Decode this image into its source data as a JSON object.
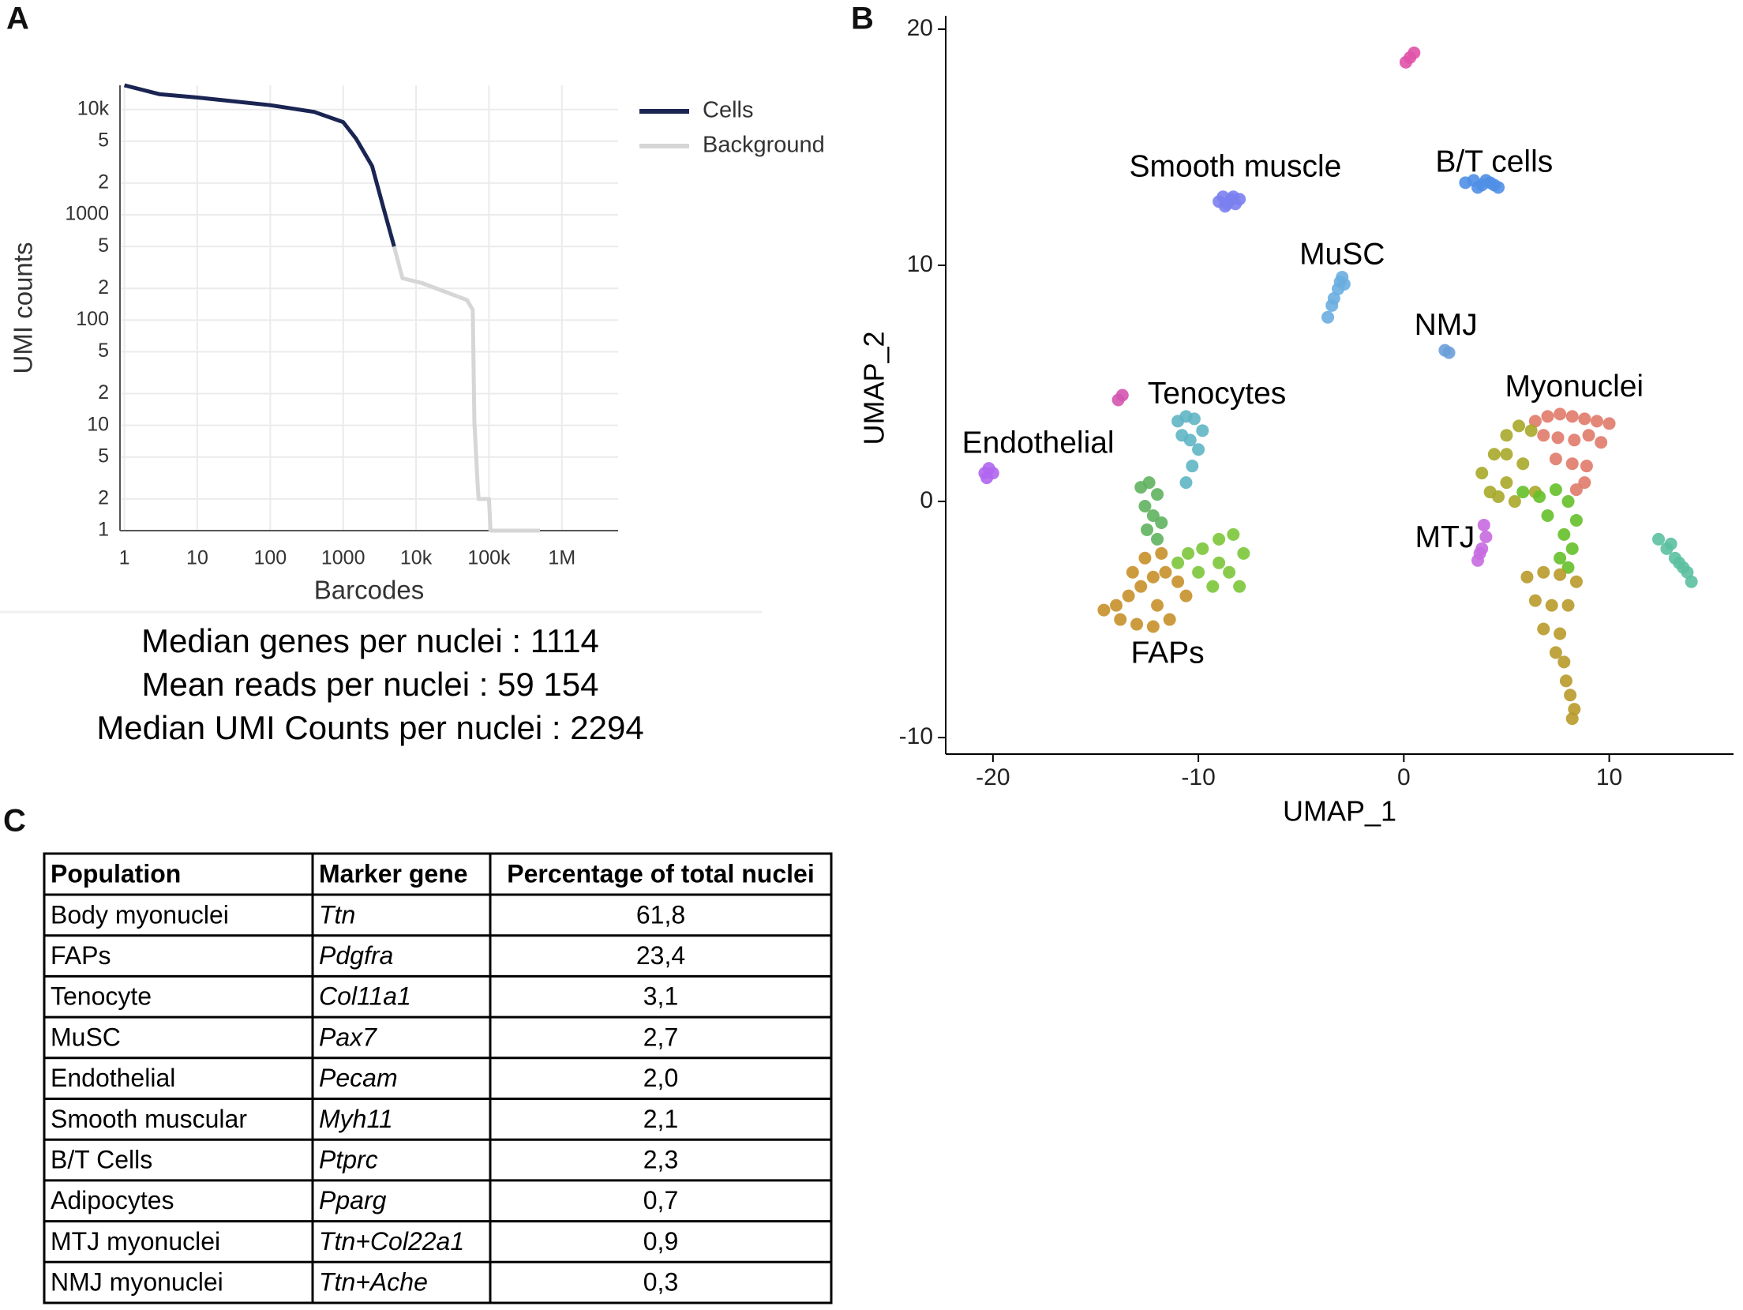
{
  "panel_labels": [
    "A",
    "B",
    "C"
  ],
  "chart_data": [
    {
      "type": "line",
      "x_label": "Barcodes",
      "y_label": "UMI counts",
      "xscale": "log",
      "yscale": "log",
      "xlim": [
        0.87,
        5900000
      ],
      "ylim": [
        1,
        17000
      ],
      "xticks": [
        1,
        10,
        100,
        1000,
        {
          "value": 10000,
          "label": "10k"
        },
        {
          "value": 100000,
          "label": "100k"
        },
        {
          "value": 1000000,
          "label": "1M"
        }
      ],
      "yticks": [
        {
          "value": 10000,
          "label": "10k"
        },
        {
          "value": 5000,
          "label": "5"
        },
        {
          "value": 2000,
          "label": "2"
        },
        1000,
        {
          "value": 500,
          "label": "5"
        },
        {
          "value": 200,
          "label": "2"
        },
        100,
        {
          "value": 50,
          "label": "5"
        },
        {
          "value": 20,
          "label": "2"
        },
        10,
        5,
        2,
        1
      ],
      "grid": true,
      "legend": "right",
      "series": [
        {
          "name": "Cells",
          "color": "#1b2553",
          "x": [
            1,
            3,
            10,
            100,
            400,
            1000,
            1500,
            2500,
            3500,
            5000
          ],
          "values": [
            17000,
            14000,
            13000,
            11000,
            9500,
            7600,
            5300,
            2900,
            1230,
            500
          ]
        },
        {
          "name": "Background",
          "color": "#d6d6d6",
          "x": [
            5000,
            6500,
            12000,
            50000,
            60000,
            63000,
            70000,
            72000,
            100000,
            105000,
            500000
          ],
          "values": [
            500,
            250,
            225,
            155,
            125,
            11,
            2.7,
            2,
            2,
            1,
            1
          ]
        }
      ]
    },
    {
      "type": "scatter",
      "x_label": "UMAP_1",
      "y_label": "UMAP_2",
      "xlim": [
        -22.3,
        16.05
      ],
      "ylim": [
        -10.7,
        20.3
      ],
      "xticks": [
        -20,
        -10,
        0,
        10
      ],
      "yticks": [
        -10,
        0,
        10,
        20
      ],
      "annotations": [
        {
          "text": "Smooth muscle",
          "x": -8.2,
          "y": 14.1
        },
        {
          "text": "B/T cells",
          "x": 4.4,
          "y": 14.3
        },
        {
          "text": "MuSC",
          "x": -3.0,
          "y": 10.4
        },
        {
          "text": "NMJ",
          "x": 2.05,
          "y": 7.4
        },
        {
          "text": "Tenocytes",
          "x": -9.1,
          "y": 4.5
        },
        {
          "text": "Myonuclei",
          "x": 8.3,
          "y": 4.8
        },
        {
          "text": "Endothelial",
          "x": -17.8,
          "y": 2.4
        },
        {
          "text": "MTJ",
          "x": 2.0,
          "y": -1.6
        },
        {
          "text": "FAPs",
          "x": -11.5,
          "y": -6.5
        }
      ],
      "series": [
        {
          "color": "#e052a8",
          "x": [
            0.1,
            0.3,
            0.5
          ],
          "values": [
            18.6,
            18.8,
            19.0
          ]
        },
        {
          "color": "#7b7ff0",
          "x": [
            -9.0,
            -8.8,
            -8.6,
            -8.4,
            -8.2,
            -8.0,
            -8.7,
            -8.3
          ],
          "values": [
            12.7,
            12.9,
            12.6,
            12.8,
            12.6,
            12.8,
            12.5,
            12.9
          ]
        },
        {
          "color": "#4f8fe6",
          "x": [
            3.0,
            3.4,
            3.8,
            4.2,
            4.6,
            3.6,
            4.0,
            4.4
          ],
          "values": [
            13.5,
            13.6,
            13.4,
            13.5,
            13.3,
            13.3,
            13.6,
            13.4
          ]
        },
        {
          "color": "#6aaee0",
          "x": [
            -3.7,
            -3.5,
            -3.4,
            -3.2,
            -3.1,
            -3.0,
            -2.9
          ],
          "values": [
            7.8,
            8.3,
            8.6,
            9.0,
            9.3,
            9.5,
            9.2
          ]
        },
        {
          "color": "#6a9fd8",
          "x": [
            2.0,
            2.2
          ],
          "values": [
            6.4,
            6.3
          ]
        },
        {
          "color": "#d455b0",
          "x": [
            -13.9,
            -13.7
          ],
          "values": [
            4.3,
            4.5
          ]
        },
        {
          "color": "#b066f0",
          "x": [
            -20.4,
            -20.2,
            -20.0,
            -20.3
          ],
          "values": [
            1.2,
            1.4,
            1.2,
            1.0
          ]
        },
        {
          "color": "#c86ae0",
          "x": [
            3.6,
            3.8,
            4.0,
            3.9,
            3.7
          ],
          "values": [
            -2.5,
            -2.0,
            -1.5,
            -1.0,
            -2.2
          ]
        },
        {
          "color": "#5fb5c4",
          "x": [
            -11.0,
            -10.6,
            -10.2,
            -9.8,
            -10.4,
            -10.0,
            -10.8,
            -10.3,
            -10.6
          ],
          "values": [
            3.4,
            3.6,
            3.5,
            3.0,
            2.6,
            2.2,
            2.8,
            1.5,
            0.8
          ]
        },
        {
          "color": "#5fb35f",
          "x": [
            -12.8,
            -12.4,
            -12.0,
            -12.6,
            -12.2,
            -11.8,
            -12.5,
            -12.0
          ],
          "values": [
            0.6,
            0.8,
            0.3,
            -0.2,
            -0.6,
            -0.9,
            -1.2,
            -1.6
          ]
        },
        {
          "color": "#7cc63a",
          "x": [
            -10.5,
            -9.8,
            -9.0,
            -8.3,
            -7.8,
            -8.5,
            -9.3,
            -10.0,
            -8.0,
            -9.0,
            -11.0
          ],
          "values": [
            -2.2,
            -2.0,
            -1.6,
            -1.4,
            -2.2,
            -3.0,
            -3.6,
            -3.0,
            -3.6,
            -2.6,
            -2.6
          ]
        },
        {
          "color": "#c8902a",
          "x": [
            -14.6,
            -14.0,
            -13.4,
            -12.8,
            -12.2,
            -11.6,
            -11.0,
            -10.6,
            -13.8,
            -13.0,
            -12.2,
            -11.4,
            -12.6,
            -11.8,
            -13.2,
            -12.0
          ],
          "values": [
            -4.6,
            -4.4,
            -4.0,
            -3.6,
            -3.2,
            -3.0,
            -3.4,
            -4.0,
            -5.0,
            -5.2,
            -5.3,
            -5.0,
            -2.4,
            -2.2,
            -3.0,
            -4.4
          ]
        },
        {
          "color": "#e07a6a",
          "x": [
            6.4,
            7.0,
            7.6,
            8.2,
            8.8,
            9.4,
            10.0,
            6.8,
            7.5,
            8.3,
            9.0,
            9.6,
            7.4,
            8.2,
            8.9,
            8.8,
            8.4
          ],
          "values": [
            3.4,
            3.6,
            3.7,
            3.6,
            3.5,
            3.4,
            3.3,
            2.8,
            2.7,
            2.6,
            2.8,
            2.5,
            1.8,
            1.6,
            1.5,
            0.8,
            0.5
          ]
        },
        {
          "color": "#a8a82a",
          "x": [
            3.8,
            4.4,
            5.0,
            5.6,
            6.2,
            4.2,
            5.0,
            5.8,
            4.6,
            5.4,
            6.4,
            5.0
          ],
          "values": [
            1.2,
            2.0,
            2.8,
            3.2,
            3.0,
            0.4,
            0.8,
            1.6,
            0.2,
            0.0,
            0.4,
            2.0
          ]
        },
        {
          "color": "#66c02a",
          "x": [
            5.8,
            6.6,
            7.4,
            8.0,
            8.4,
            7.0,
            7.8,
            8.2,
            7.6,
            8.0
          ],
          "values": [
            0.4,
            0.2,
            0.5,
            0.0,
            -0.8,
            -0.6,
            -1.4,
            -2.0,
            -2.4,
            -2.8
          ]
        },
        {
          "color": "#b89a2a",
          "x": [
            6.0,
            6.8,
            7.6,
            8.4,
            6.4,
            7.2,
            8.0,
            6.8,
            7.6,
            7.4,
            7.8,
            7.9,
            8.1,
            8.3,
            8.2
          ],
          "values": [
            -3.2,
            -3.0,
            -3.1,
            -3.4,
            -4.2,
            -4.4,
            -4.4,
            -5.4,
            -5.6,
            -6.4,
            -6.8,
            -7.6,
            -8.2,
            -8.8,
            -9.2
          ]
        },
        {
          "color": "#5cc0a0",
          "x": [
            12.4,
            12.8,
            13.2,
            13.6,
            14.0,
            13.0,
            13.4,
            13.8
          ],
          "values": [
            -1.6,
            -2.0,
            -2.4,
            -2.8,
            -3.4,
            -1.8,
            -2.6,
            -3.0
          ]
        }
      ]
    }
  ],
  "stats": [
    "Median genes per nuclei : 1114",
    "Mean reads per nuclei : 59 154",
    "Median UMI Counts per nuclei : 2294"
  ],
  "table": {
    "header": [
      "Population",
      "Marker gene",
      "Percentage of total nuclei"
    ],
    "rows": [
      [
        "Body myonuclei",
        "Ttn",
        "61,8"
      ],
      [
        "FAPs",
        "Pdgfra",
        "23,4"
      ],
      [
        "Tenocyte",
        "Col11a1",
        "3,1"
      ],
      [
        "MuSC",
        "Pax7",
        "2,7"
      ],
      [
        "Endothelial",
        "Pecam",
        "2,0"
      ],
      [
        "Smooth muscular",
        "Myh11",
        "2,1"
      ],
      [
        "B/T Cells",
        "Ptprc",
        "2,3"
      ],
      [
        "Adipocytes",
        "Pparg",
        "0,7"
      ],
      [
        "MTJ myonuclei",
        "Ttn+Col22a1",
        "0,9"
      ],
      [
        "NMJ myonuclei",
        "Ttn+Ache",
        "0,3"
      ]
    ]
  }
}
